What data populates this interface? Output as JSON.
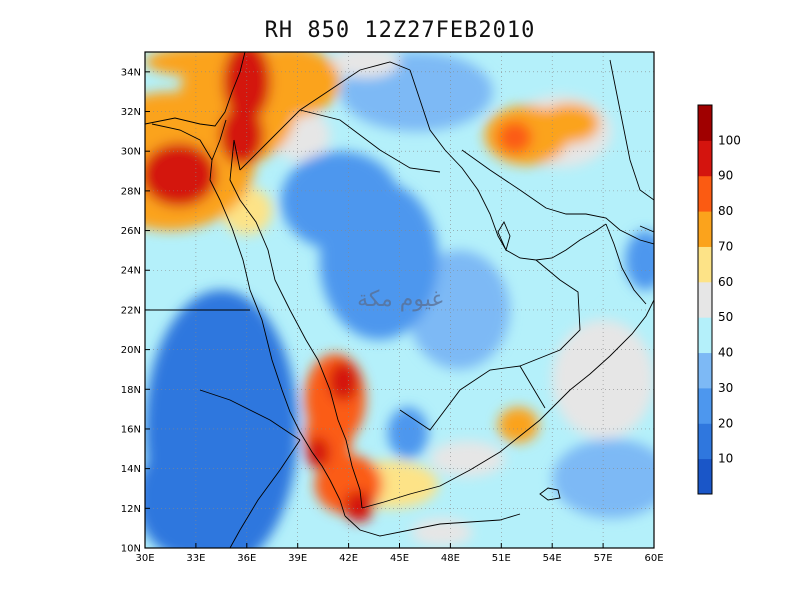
{
  "title": "RH 850 12Z27FEB2010",
  "watermark": "غيوم مكة",
  "map": {
    "lon_range": [
      30,
      60
    ],
    "lat_range": [
      10,
      35
    ],
    "lon_ticks": [
      {
        "value": 30,
        "label": "30E"
      },
      {
        "value": 33,
        "label": "33E"
      },
      {
        "value": 36,
        "label": "36E"
      },
      {
        "value": 39,
        "label": "39E"
      },
      {
        "value": 42,
        "label": "42E"
      },
      {
        "value": 45,
        "label": "45E"
      },
      {
        "value": 48,
        "label": "48E"
      },
      {
        "value": 51,
        "label": "51E"
      },
      {
        "value": 54,
        "label": "54E"
      },
      {
        "value": 57,
        "label": "57E"
      },
      {
        "value": 60,
        "label": "60E"
      }
    ],
    "lat_ticks": [
      {
        "value": 10,
        "label": "10N"
      },
      {
        "value": 12,
        "label": "12N"
      },
      {
        "value": 14,
        "label": "14N"
      },
      {
        "value": 16,
        "label": "16N"
      },
      {
        "value": 18,
        "label": "18N"
      },
      {
        "value": 20,
        "label": "20N"
      },
      {
        "value": 22,
        "label": "22N"
      },
      {
        "value": 24,
        "label": "24N"
      },
      {
        "value": 26,
        "label": "26N"
      },
      {
        "value": 28,
        "label": "28N"
      },
      {
        "value": 30,
        "label": "30N"
      },
      {
        "value": 32,
        "label": "32N"
      },
      {
        "value": 34,
        "label": "34N"
      }
    ],
    "grid": "dotted",
    "field": {
      "variable": "RH",
      "level": "850",
      "blobs": [
        {
          "lon": 31.5,
          "lat": 29.5,
          "rlon": 5.0,
          "rlat": 3.5,
          "value": 78
        },
        {
          "lon": 32.0,
          "lat": 28.8,
          "rlon": 2.2,
          "rlat": 1.6,
          "value": 96
        },
        {
          "lon": 35.5,
          "lat": 32.5,
          "rlon": 3.5,
          "rlat": 3.2,
          "value": 75
        },
        {
          "lon": 36.0,
          "lat": 33.5,
          "rlon": 1.4,
          "rlat": 2.0,
          "value": 98
        },
        {
          "lon": 35.7,
          "lat": 30.8,
          "rlon": 1.3,
          "rlat": 1.5,
          "value": 90
        },
        {
          "lon": 38.5,
          "lat": 33.5,
          "rlon": 3.0,
          "rlat": 1.8,
          "value": 72
        },
        {
          "lon": 34.0,
          "lat": 34.5,
          "rlon": 4.0,
          "rlat": 0.8,
          "value": 72
        },
        {
          "lon": 39.2,
          "lat": 30.8,
          "rlon": 1.7,
          "rlat": 1.3,
          "value": 58
        },
        {
          "lon": 36.0,
          "lat": 27.0,
          "rlon": 1.5,
          "rlat": 1.2,
          "value": 62
        },
        {
          "lon": 41.2,
          "lat": 17.5,
          "rlon": 1.8,
          "rlat": 2.3,
          "value": 85
        },
        {
          "lon": 41.7,
          "lat": 18.4,
          "rlon": 0.9,
          "rlat": 1.0,
          "value": 96
        },
        {
          "lon": 40.8,
          "lat": 15.5,
          "rlon": 1.4,
          "rlat": 1.6,
          "value": 88
        },
        {
          "lon": 40.2,
          "lat": 14.8,
          "rlon": 0.7,
          "rlat": 0.8,
          "value": 97
        },
        {
          "lon": 42.0,
          "lat": 13.2,
          "rlon": 2.0,
          "rlat": 1.5,
          "value": 84
        },
        {
          "lon": 42.6,
          "lat": 12.1,
          "rlon": 0.9,
          "rlat": 0.8,
          "value": 98
        },
        {
          "lon": 44.5,
          "lat": 13.2,
          "rlon": 2.8,
          "rlat": 1.2,
          "value": 62
        },
        {
          "lon": 49.0,
          "lat": 14.5,
          "rlon": 2.2,
          "rlat": 0.9,
          "value": 58
        },
        {
          "lon": 52.0,
          "lat": 16.2,
          "rlon": 1.2,
          "rlat": 0.9,
          "value": 75
        },
        {
          "lon": 52.5,
          "lat": 30.8,
          "rlon": 2.5,
          "rlat": 1.5,
          "value": 72
        },
        {
          "lon": 51.8,
          "lat": 30.7,
          "rlon": 1.0,
          "rlat": 0.8,
          "value": 88
        },
        {
          "lon": 54.5,
          "lat": 31.0,
          "rlon": 3.0,
          "rlat": 1.8,
          "value": 58
        },
        {
          "lon": 55.0,
          "lat": 31.4,
          "rlon": 1.8,
          "rlat": 1.0,
          "value": 78
        },
        {
          "lon": 34.5,
          "lat": 16.0,
          "rlon": 4.5,
          "rlat": 7.0,
          "value": 18
        },
        {
          "lon": 32.5,
          "lat": 12.5,
          "rlon": 3.0,
          "rlat": 3.0,
          "value": 12
        },
        {
          "lon": 43.8,
          "lat": 24.5,
          "rlon": 3.5,
          "rlat": 4.0,
          "value": 22
        },
        {
          "lon": 41.5,
          "lat": 27.5,
          "rlon": 3.5,
          "rlat": 2.5,
          "value": 25
        },
        {
          "lon": 45.5,
          "lat": 15.8,
          "rlon": 1.2,
          "rlat": 1.3,
          "value": 28
        },
        {
          "lon": 48.5,
          "lat": 22.0,
          "rlon": 3.0,
          "rlat": 3.0,
          "value": 33
        },
        {
          "lon": 54.0,
          "lat": 25.0,
          "rlon": 3.0,
          "rlat": 2.5,
          "value": 42
        },
        {
          "lon": 59.5,
          "lat": 24.5,
          "rlon": 1.2,
          "rlat": 1.5,
          "value": 22
        },
        {
          "lon": 57.5,
          "lat": 13.5,
          "rlon": 3.5,
          "rlat": 2.0,
          "value": 35
        },
        {
          "lon": 46.0,
          "lat": 33.0,
          "rlon": 4.5,
          "rlat": 2.0,
          "value": 35
        },
        {
          "lon": 57.0,
          "lat": 18.5,
          "rlon": 3.0,
          "rlat": 3.0,
          "value": 55
        },
        {
          "lon": 43.0,
          "lat": 34.5,
          "rlon": 2.0,
          "rlat": 0.8,
          "value": 55
        },
        {
          "lon": 47.5,
          "lat": 10.8,
          "rlon": 1.8,
          "rlat": 0.7,
          "value": 58
        }
      ]
    }
  },
  "colorbar": {
    "bins": [
      {
        "upper": 10,
        "color": "#1a56c8"
      },
      {
        "upper": 20,
        "color": "#2f77de"
      },
      {
        "upper": 30,
        "color": "#4d97ee"
      },
      {
        "upper": 40,
        "color": "#7db9f5"
      },
      {
        "upper": 50,
        "color": "#b4f0fa"
      },
      {
        "upper": 60,
        "color": "#e6e6e6"
      },
      {
        "upper": 70,
        "color": "#fde387"
      },
      {
        "upper": 80,
        "color": "#fba31c"
      },
      {
        "upper": 90,
        "color": "#fb5b12"
      },
      {
        "upper": 100,
        "color": "#d4140e"
      },
      {
        "upper": 110,
        "color": "#a00000"
      }
    ],
    "tick_labels": [
      "10",
      "20",
      "30",
      "40",
      "50",
      "60",
      "70",
      "80",
      "90",
      "100"
    ]
  }
}
